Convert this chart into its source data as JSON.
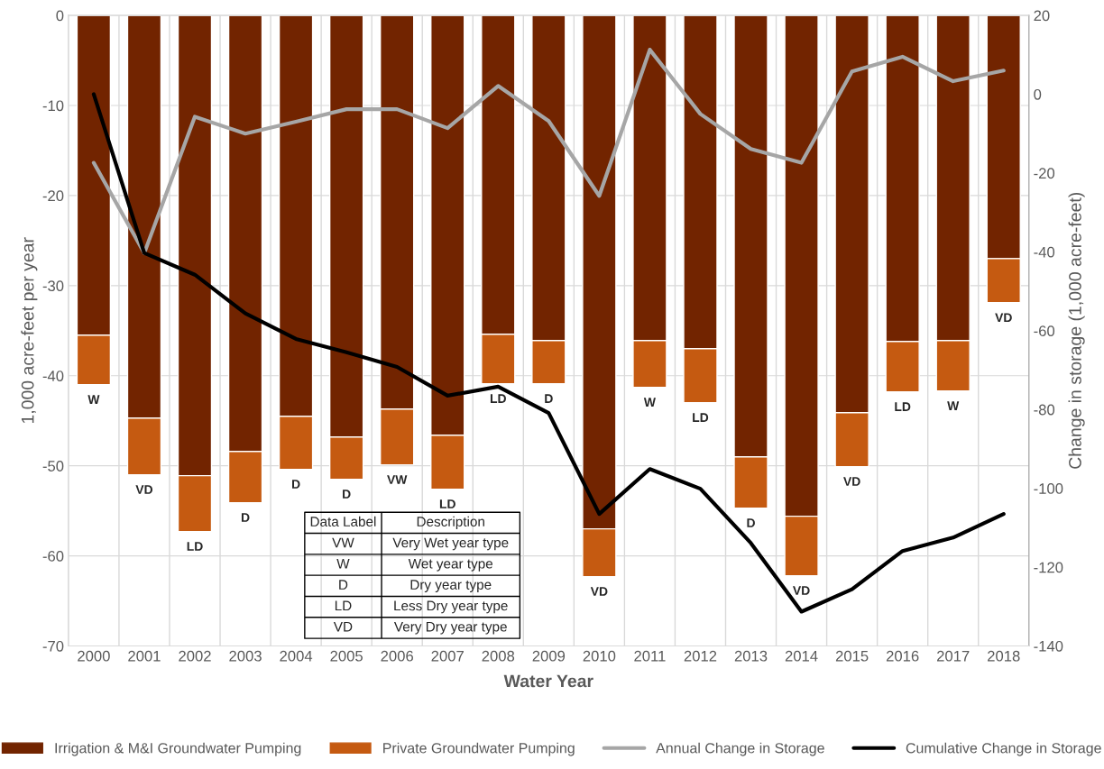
{
  "chart_data": {
    "type": "bar",
    "stacked": true,
    "xlabel": "Water Year",
    "ylabel": "1,000 acre-feet per year",
    "y2label": "Change in storage (1,000 acre-feet)",
    "categories": [
      "2000",
      "2001",
      "2002",
      "2003",
      "2004",
      "2005",
      "2006",
      "2007",
      "2008",
      "2009",
      "2010",
      "2011",
      "2012",
      "2013",
      "2014",
      "2015",
      "2016",
      "2017",
      "2018"
    ],
    "series": [
      {
        "name": "Irrigation & M&I Groundwater Pumping",
        "color": "#722400",
        "values": [
          -35.5,
          -44.7,
          -51.1,
          -48.4,
          -44.5,
          -46.8,
          -43.7,
          -46.6,
          -35.4,
          -36.1,
          -57.0,
          -36.1,
          -37.0,
          -49.0,
          -55.6,
          -44.1,
          -36.2,
          -36.1,
          -27.0
        ]
      },
      {
        "name": "Private Groundwater Pumping",
        "color": "#c55a11",
        "values": [
          -5.5,
          -6.3,
          -6.2,
          -5.7,
          -5.9,
          -4.7,
          -6.2,
          -6.0,
          -5.5,
          -4.8,
          -5.3,
          -5.2,
          -6.0,
          -5.7,
          -6.6,
          -6.0,
          -5.6,
          -5.6,
          -4.9
        ],
        "value_labels": [
          "W",
          "VD",
          "LD",
          "D",
          "D",
          "D",
          "VW",
          "LD",
          "LD",
          "D",
          "VD",
          "W",
          "LD",
          "D",
          "VD",
          "VD",
          "LD",
          "W",
          "VD"
        ]
      },
      {
        "name": "Annual Change in Storage",
        "type": "line",
        "axis": "y2",
        "color": "#a6a6a6",
        "values": [
          -17.4,
          -40.3,
          -5.7,
          -10.0,
          -7.0,
          -3.8,
          -3.8,
          -8.6,
          2.1,
          -6.8,
          -25.8,
          11.3,
          -5.0,
          -13.9,
          -17.4,
          5.8,
          9.5,
          3.3,
          6.0
        ]
      },
      {
        "name": "Cumulative Change in Storage",
        "type": "line",
        "axis": "y2",
        "color": "#000000",
        "values": [
          0,
          -40.3,
          -45.8,
          -55.6,
          -62.1,
          -65.5,
          -69.2,
          -76.5,
          -74.2,
          -80.9,
          -106.5,
          -95.1,
          -100.1,
          -113.9,
          -131.3,
          -125.6,
          -115.9,
          -112.5,
          -106.5
        ]
      }
    ],
    "ylim": [
      -70,
      0
    ],
    "yticks": [
      -70,
      -60,
      -50,
      -40,
      -30,
      -20,
      -10,
      0
    ],
    "y2lim": [
      -140,
      20
    ],
    "y2ticks": [
      -140,
      -120,
      -100,
      -80,
      -60,
      -40,
      -20,
      0,
      20
    ],
    "grid": true,
    "legend": "bottom",
    "marker": "none",
    "line_style": "solid",
    "annotations": [
      "Data Label",
      "Description",
      "VW",
      "Very Wet year type",
      "W",
      "Wet year type",
      "D",
      "Dry year type",
      "LD",
      "Less Dry year type",
      "VD",
      "Very Dry year type"
    ]
  }
}
